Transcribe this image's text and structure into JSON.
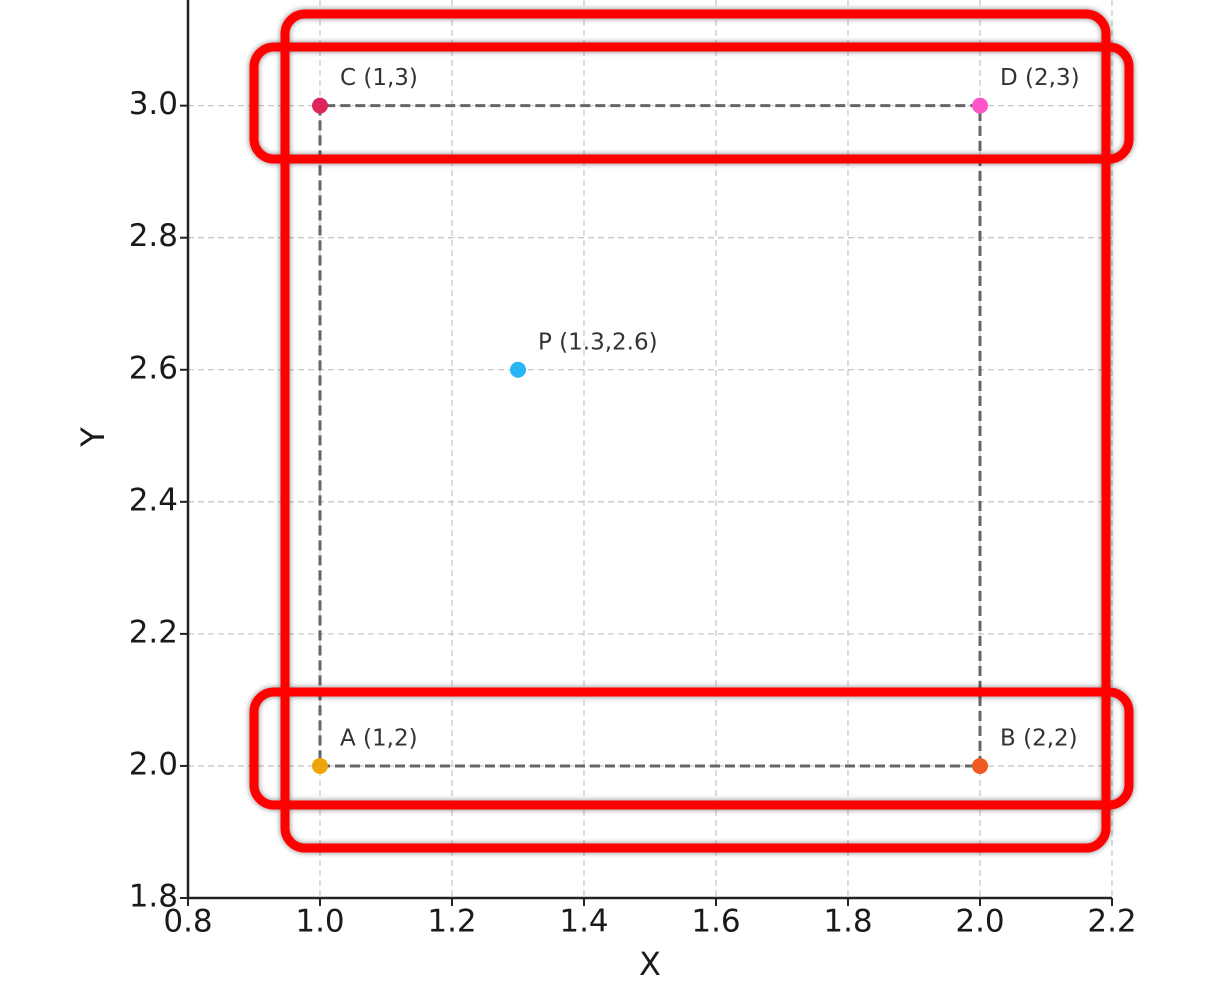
{
  "chart_data": {
    "type": "scatter",
    "xlabel": "X",
    "ylabel": "Y",
    "xlim": [
      0.8,
      2.2
    ],
    "ylim": [
      1.8,
      3.16
    ],
    "xticks": [
      0.8,
      {
        "value": 1,
        "label": "1.0"
      },
      1.2,
      1.4,
      1.6,
      1.8,
      {
        "value": 2,
        "label": "2.0"
      },
      2.2
    ],
    "yticks": [
      1.8,
      {
        "value": 2,
        "label": "2.0"
      },
      2.2,
      2.4,
      2.6,
      2.8,
      {
        "value": 3,
        "label": "3.0"
      }
    ],
    "grid": true,
    "points": [
      {
        "label": "A (1,2)",
        "x": 1,
        "y": 2,
        "color": "#f0a30a"
      },
      {
        "label": "B (2,2)",
        "x": 2,
        "y": 2,
        "color": "#f05a22"
      },
      {
        "label": "C (1,3)",
        "x": 1,
        "y": 3,
        "color": "#e0245e"
      },
      {
        "label": "D (2,3)",
        "x": 2,
        "y": 3,
        "color": "#ff55c8"
      },
      {
        "label": "P (1.3,2.6)",
        "x": 1.3,
        "y": 2.6,
        "color": "#29b6f6"
      }
    ],
    "outline": {
      "x": [
        1,
        2,
        2,
        1,
        1
      ],
      "y": [
        2,
        2,
        3,
        3,
        2
      ],
      "color": "#666666"
    }
  }
}
